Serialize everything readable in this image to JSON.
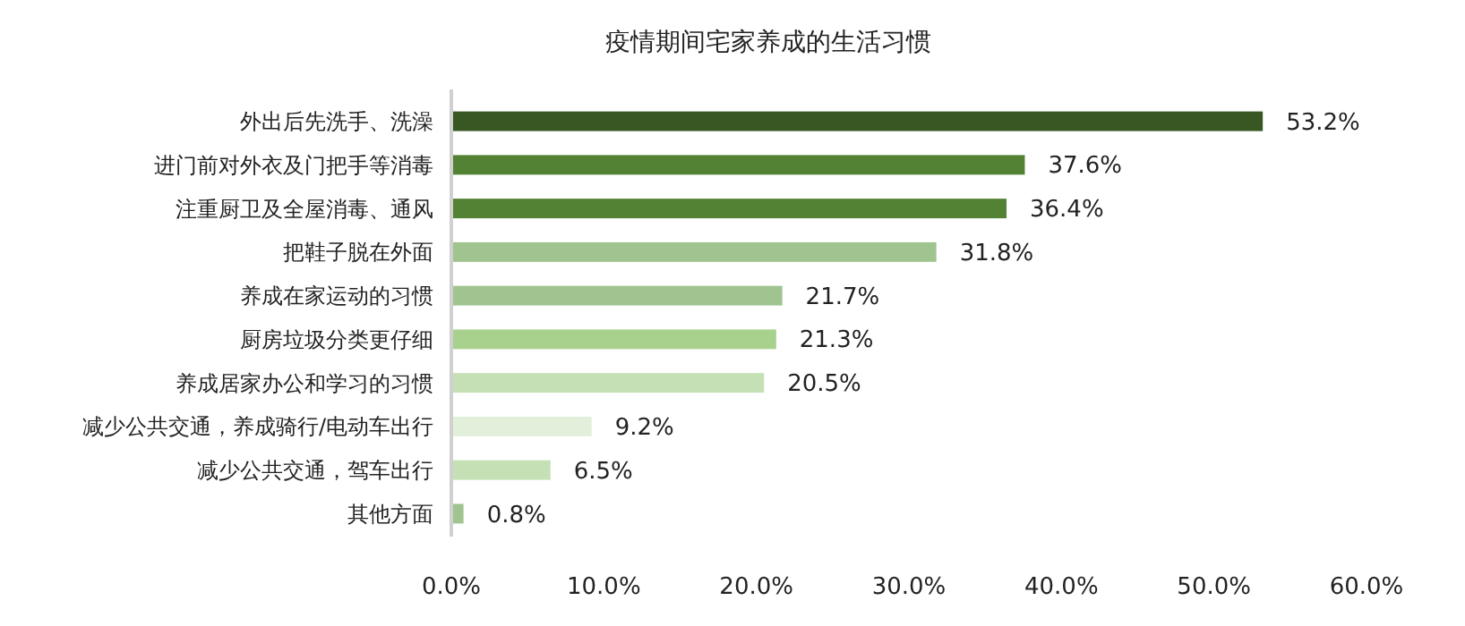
{
  "chart_data": {
    "type": "bar",
    "orientation": "horizontal",
    "title": "疫情期间宅家养成的生活习惯",
    "categories": [
      "外出后先洗手、洗澡",
      "进门前对外衣及门把手等消毒",
      "注重厨卫及全屋消毒、通风",
      "把鞋子脱在外面",
      "养成在家运动的习惯",
      "厨房垃圾分类更仔细",
      "养成居家办公和学习的习惯",
      "减少公共交通，养成骑行/电动车出行",
      "减少公共交通，驾车出行",
      "其他方面"
    ],
    "values": [
      53.2,
      37.6,
      36.4,
      31.8,
      21.7,
      21.3,
      20.5,
      9.2,
      6.5,
      0.8
    ],
    "colors": [
      "#385723",
      "#548235",
      "#548235",
      "#a0c490",
      "#a0c490",
      "#a9d18e",
      "#c5e0b4",
      "#e2efda",
      "#c5e0b4",
      "#a0c490"
    ],
    "value_labels": [
      "53.2%",
      "37.6%",
      "36.4%",
      "31.8%",
      "21.7%",
      "21.3%",
      "20.5%",
      "9.2%",
      "6.5%",
      "0.8%"
    ],
    "xlim": [
      0,
      60
    ],
    "xticks": [
      {
        "value": 0,
        "label": "0.0%"
      },
      {
        "value": 10,
        "label": "10.0%"
      },
      {
        "value": 20,
        "label": "20.0%"
      },
      {
        "value": 30,
        "label": "30.0%"
      },
      {
        "value": 40,
        "label": "40.0%"
      },
      {
        "value": 50,
        "label": "50.0%"
      },
      {
        "value": 60,
        "label": "60.0%"
      }
    ],
    "grid": false
  }
}
